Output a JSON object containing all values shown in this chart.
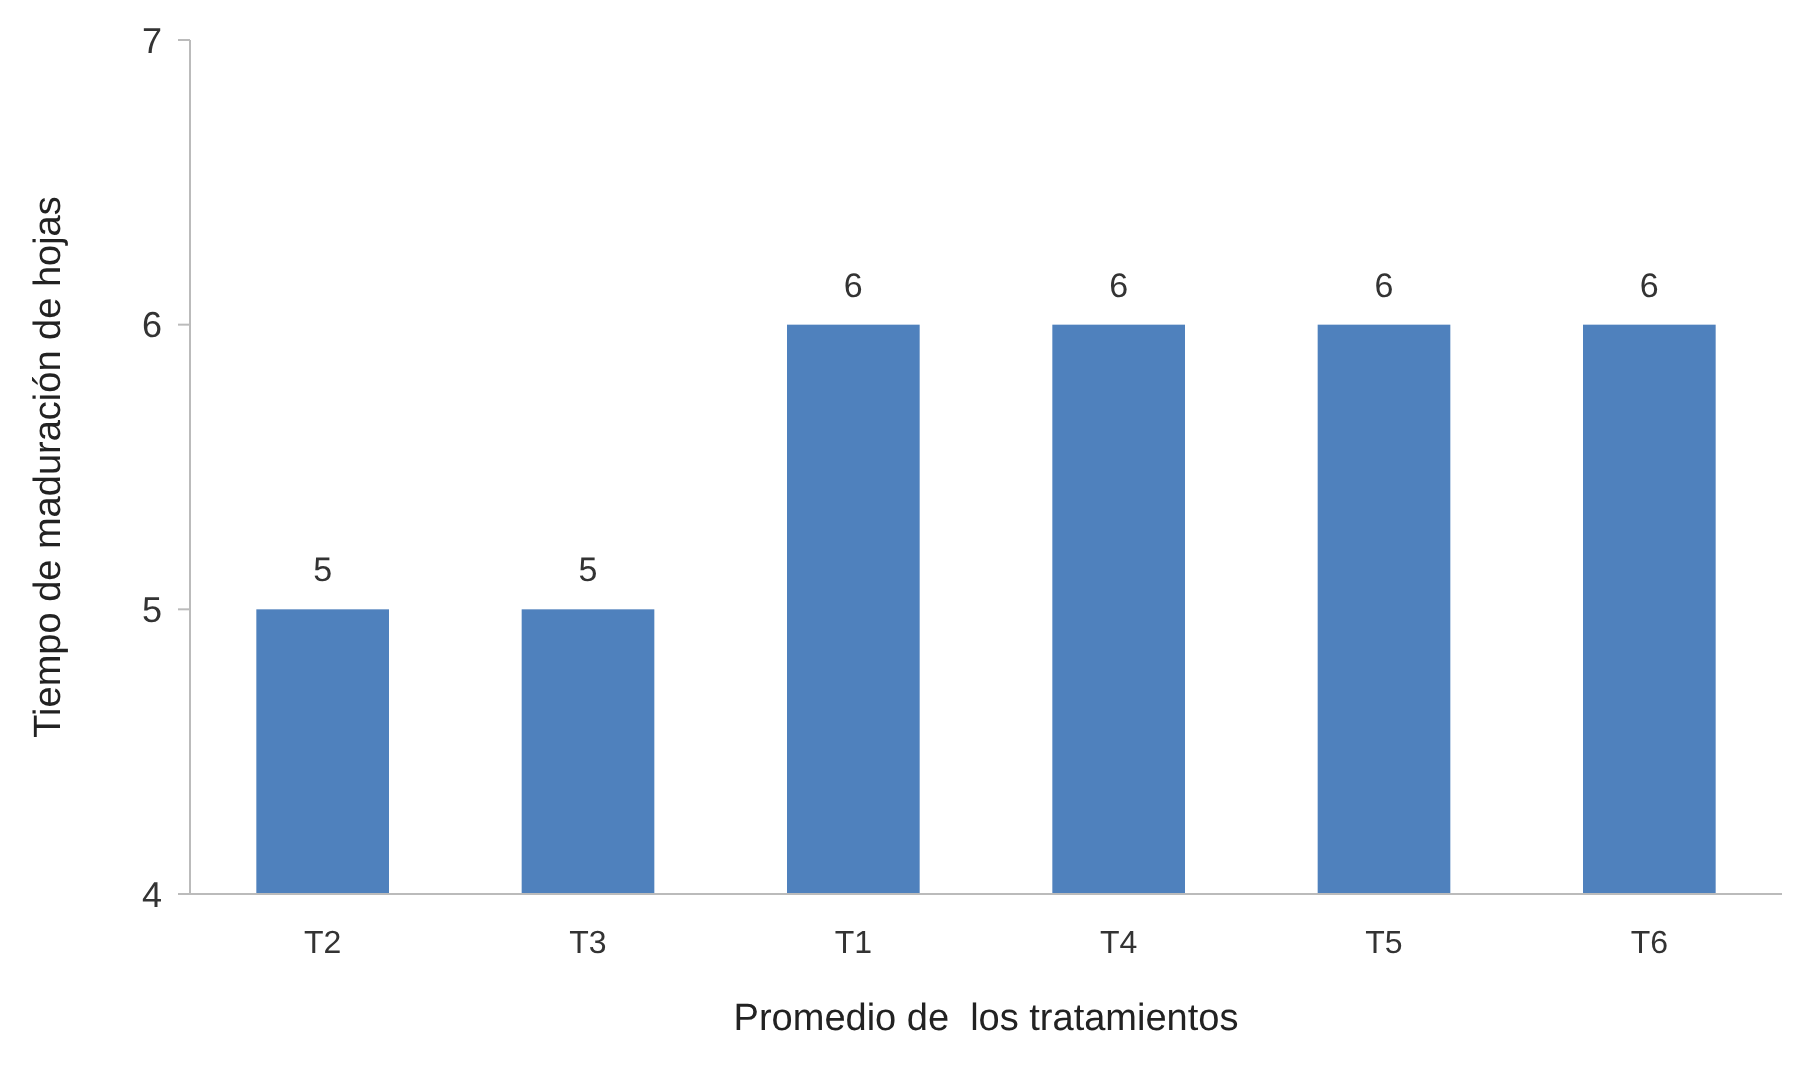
{
  "chart_data": {
    "type": "bar",
    "xlabel": "Promedio de  los tratamientos",
    "ylabel": "Tiempo de maduración de hojas",
    "categories": [
      "T2",
      "T3",
      "T1",
      "T4",
      "T5",
      "T6"
    ],
    "values": [
      5,
      5,
      6,
      6,
      6,
      6
    ],
    "color": "#4f81bd",
    "ylim": [
      4,
      7
    ],
    "yticks": [
      4,
      5,
      6,
      7
    ],
    "grid": false,
    "data_labels": true
  }
}
